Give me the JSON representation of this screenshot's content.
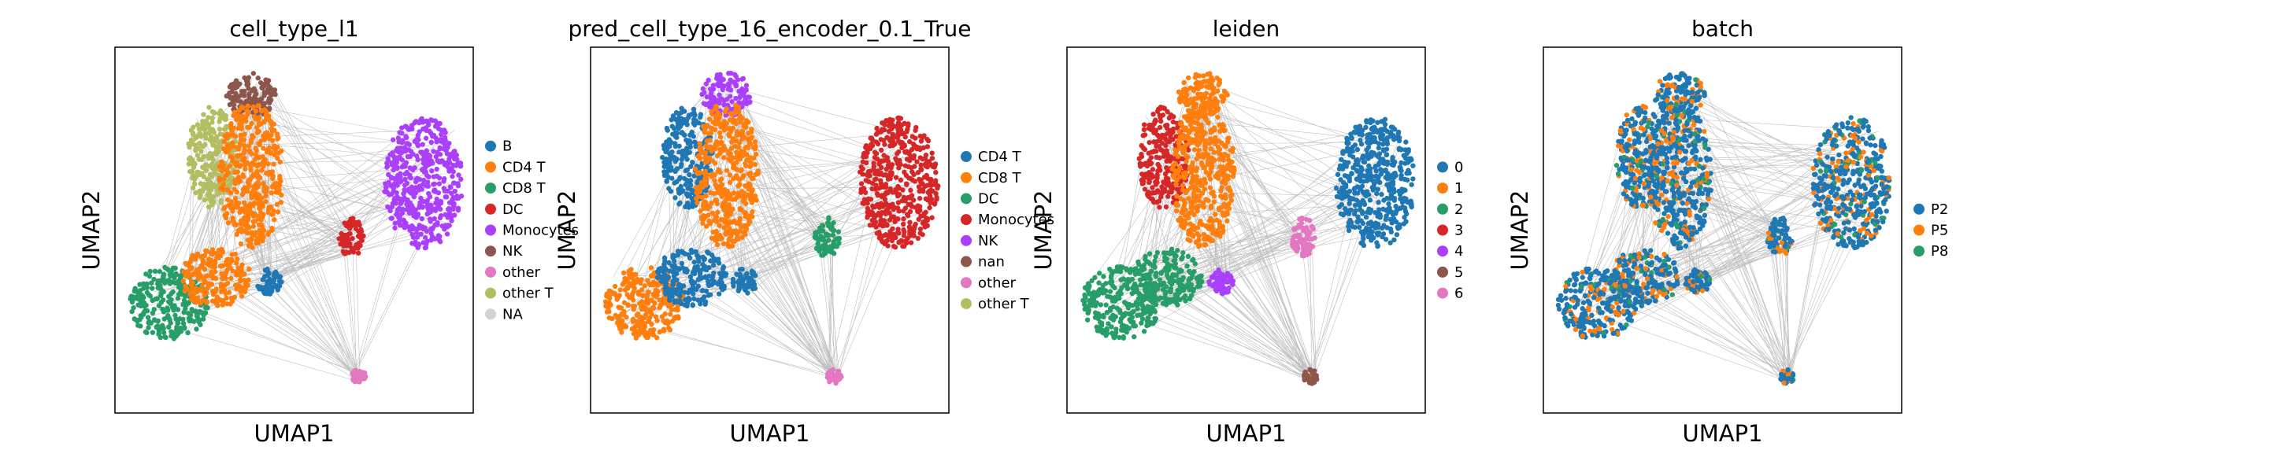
{
  "figure": {
    "panels": [
      {
        "title": "cell_type_l1",
        "xlabel": "UMAP1",
        "ylabel": "UMAP2",
        "legend": [
          {
            "label": "B",
            "color": "#1f77b4"
          },
          {
            "label": "CD4 T",
            "color": "#ff7f0e"
          },
          {
            "label": "CD8 T",
            "color": "#279e68"
          },
          {
            "label": "DC",
            "color": "#d62728"
          },
          {
            "label": "Monocytes",
            "color": "#aa40fc"
          },
          {
            "label": "NK",
            "color": "#8c564b"
          },
          {
            "label": "other",
            "color": "#e377c2"
          },
          {
            "label": "other T",
            "color": "#b5bd61"
          },
          {
            "label": "NA",
            "color": "#d3d3d3"
          }
        ]
      },
      {
        "title": "pred_cell_type_16_encoder_0.1_True",
        "xlabel": "UMAP1",
        "ylabel": "UMAP2",
        "legend": [
          {
            "label": "CD4 T",
            "color": "#1f77b4"
          },
          {
            "label": "CD8 T",
            "color": "#ff7f0e"
          },
          {
            "label": "DC",
            "color": "#279e68"
          },
          {
            "label": "Monocytes",
            "color": "#d62728"
          },
          {
            "label": "NK",
            "color": "#aa40fc"
          },
          {
            "label": "nan",
            "color": "#8c564b"
          },
          {
            "label": "other",
            "color": "#e377c2"
          },
          {
            "label": "other T",
            "color": "#b5bd61"
          }
        ]
      },
      {
        "title": "leiden",
        "xlabel": "UMAP1",
        "ylabel": "UMAP2",
        "legend": [
          {
            "label": "0",
            "color": "#1f77b4"
          },
          {
            "label": "1",
            "color": "#ff7f0e"
          },
          {
            "label": "2",
            "color": "#279e68"
          },
          {
            "label": "3",
            "color": "#d62728"
          },
          {
            "label": "4",
            "color": "#aa40fc"
          },
          {
            "label": "5",
            "color": "#8c564b"
          },
          {
            "label": "6",
            "color": "#e377c2"
          }
        ]
      },
      {
        "title": "batch",
        "xlabel": "UMAP1",
        "ylabel": "UMAP2",
        "legend": [
          {
            "label": "P2",
            "color": "#1f77b4"
          },
          {
            "label": "P5",
            "color": "#ff7f0e"
          },
          {
            "label": "P8",
            "color": "#279e68"
          }
        ]
      }
    ]
  },
  "chart_data": [
    {
      "type": "scatter",
      "title": "cell_type_l1",
      "xlabel": "UMAP1",
      "ylabel": "UMAP2",
      "grid": false,
      "ticks": false,
      "legend_position": "right",
      "series": [
        {
          "name": "B",
          "color": "#1f77b4"
        },
        {
          "name": "CD4 T",
          "color": "#ff7f0e"
        },
        {
          "name": "CD8 T",
          "color": "#279e68"
        },
        {
          "name": "DC",
          "color": "#d62728"
        },
        {
          "name": "Monocytes",
          "color": "#aa40fc"
        },
        {
          "name": "NK",
          "color": "#8c564b"
        },
        {
          "name": "other",
          "color": "#e377c2"
        },
        {
          "name": "other T",
          "color": "#b5bd61"
        },
        {
          "name": "NA",
          "color": "#d3d3d3"
        }
      ]
    },
    {
      "type": "scatter",
      "title": "pred_cell_type_16_encoder_0.1_True",
      "xlabel": "UMAP1",
      "ylabel": "UMAP2",
      "grid": false,
      "ticks": false,
      "legend_position": "right",
      "series": [
        {
          "name": "CD4 T",
          "color": "#1f77b4"
        },
        {
          "name": "CD8 T",
          "color": "#ff7f0e"
        },
        {
          "name": "DC",
          "color": "#279e68"
        },
        {
          "name": "Monocytes",
          "color": "#d62728"
        },
        {
          "name": "NK",
          "color": "#aa40fc"
        },
        {
          "name": "nan",
          "color": "#8c564b"
        },
        {
          "name": "other",
          "color": "#e377c2"
        },
        {
          "name": "other T",
          "color": "#b5bd61"
        }
      ]
    },
    {
      "type": "scatter",
      "title": "leiden",
      "xlabel": "UMAP1",
      "ylabel": "UMAP2",
      "grid": false,
      "ticks": false,
      "legend_position": "right",
      "series": [
        {
          "name": "0",
          "color": "#1f77b4"
        },
        {
          "name": "1",
          "color": "#ff7f0e"
        },
        {
          "name": "2",
          "color": "#279e68"
        },
        {
          "name": "3",
          "color": "#d62728"
        },
        {
          "name": "4",
          "color": "#aa40fc"
        },
        {
          "name": "5",
          "color": "#8c564b"
        },
        {
          "name": "6",
          "color": "#e377c2"
        }
      ]
    },
    {
      "type": "scatter",
      "title": "batch",
      "xlabel": "UMAP1",
      "ylabel": "UMAP2",
      "grid": false,
      "ticks": false,
      "legend_position": "right",
      "series": [
        {
          "name": "P2",
          "color": "#1f77b4"
        },
        {
          "name": "P5",
          "color": "#ff7f0e"
        },
        {
          "name": "P8",
          "color": "#279e68"
        }
      ]
    }
  ]
}
